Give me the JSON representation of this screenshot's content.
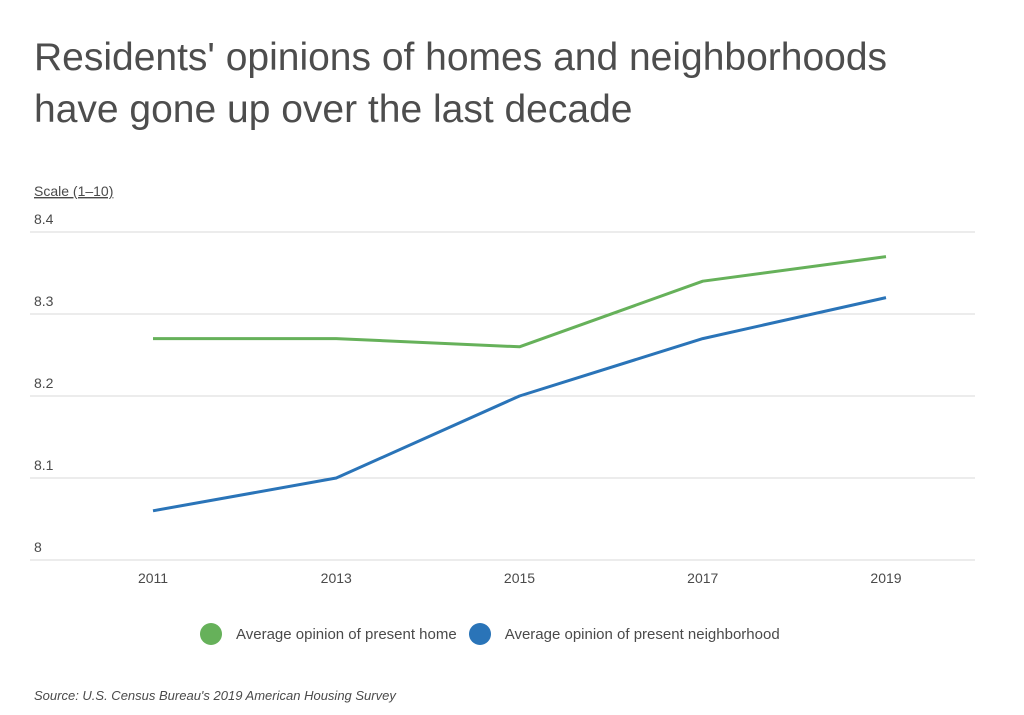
{
  "title_lines": [
    "Residents' opinions of homes and neighborhoods",
    "have gone up over the last decade"
  ],
  "source": "Source: U.S. Census Bureau's 2019 American Housing Survey",
  "colors": {
    "home": "#66b15a",
    "neighborhood": "#2a74b8",
    "grid": "#d9d9d9"
  },
  "chart_data": {
    "type": "line",
    "title": "Residents' opinions of homes and neighborhoods have gone up over the last decade",
    "ylabel": "Scale (1–10)",
    "xlabel": "",
    "categories": [
      "2011",
      "2013",
      "2015",
      "2017",
      "2019"
    ],
    "ylim": [
      8,
      8.4
    ],
    "yticks": [
      "8",
      "8.1",
      "8.2",
      "8.3",
      "8.4"
    ],
    "grid": true,
    "legend_position": "bottom",
    "series": [
      {
        "name": "Average opinion of present home",
        "values": [
          8.27,
          8.27,
          8.26,
          8.34,
          8.37
        ]
      },
      {
        "name": "Average opinion of present neighborhood",
        "values": [
          8.06,
          8.1,
          8.2,
          8.27,
          8.32
        ]
      }
    ]
  }
}
